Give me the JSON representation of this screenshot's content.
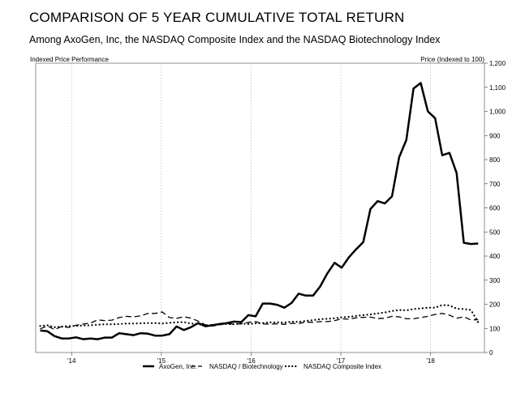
{
  "title": "COMPARISON OF 5 YEAR CUMULATIVE TOTAL RETURN",
  "subtitle": "Among AxoGen, Inc, the NASDAQ Composite Index and the NASDAQ Biotechnology Index",
  "chart_data": {
    "type": "line",
    "left_axis_label": "Indexed Price Performance",
    "right_axis_label": "Price (Indexed to 100)",
    "ylim": [
      0,
      1200
    ],
    "y_ticks": [
      0,
      100,
      200,
      300,
      400,
      500,
      600,
      700,
      800,
      900,
      1000,
      1100,
      1200
    ],
    "y_tick_labels": [
      "0",
      "100",
      "200",
      "300",
      "400",
      "500",
      "600",
      "700",
      "800",
      "900",
      "1,000",
      "1,100",
      "1,200"
    ],
    "xlim": [
      2013.6,
      2018.6
    ],
    "x_ticks": [
      2014.0,
      2015.0,
      2016.0,
      2017.0,
      2018.0
    ],
    "x_tick_labels": [
      "'14",
      "'15",
      "'16",
      "'17",
      "'18"
    ],
    "grid": "vertical-dotted",
    "legend_position": "bottom",
    "series": [
      {
        "name": "AxoGen, Inc.",
        "style": "solid",
        "x": [
          2013.65,
          2013.73,
          2013.81,
          2013.89,
          2013.97,
          2014.05,
          2014.13,
          2014.21,
          2014.29,
          2014.37,
          2014.45,
          2014.53,
          2014.61,
          2014.69,
          2014.77,
          2014.85,
          2014.93,
          2015.01,
          2015.09,
          2015.17,
          2015.25,
          2015.33,
          2015.41,
          2015.49,
          2015.57,
          2015.65,
          2015.73,
          2015.81,
          2015.89,
          2015.97,
          2016.05,
          2016.13,
          2016.21,
          2016.29,
          2016.37,
          2016.45,
          2016.53,
          2016.61,
          2016.69,
          2016.77,
          2016.85,
          2016.93,
          2017.01,
          2017.09,
          2017.17,
          2017.25,
          2017.33,
          2017.41,
          2017.49,
          2017.57,
          2017.65,
          2017.73,
          2017.81,
          2017.89,
          2017.97,
          2018.05,
          2018.13,
          2018.21,
          2018.29,
          2018.37,
          2018.45,
          2018.53
        ],
        "values": [
          91,
          88,
          68,
          58,
          58,
          63,
          55,
          58,
          55,
          62,
          62,
          80,
          76,
          72,
          80,
          78,
          70,
          70,
          76,
          108,
          93,
          105,
          122,
          109,
          113,
          118,
          122,
          128,
          126,
          155,
          150,
          203,
          203,
          198,
          186,
          205,
          244,
          236,
          236,
          274,
          328,
          372,
          352,
          395,
          428,
          458,
          595,
          628,
          618,
          648,
          810,
          882,
          1095,
          1118,
          1000,
          972,
          818,
          828,
          745,
          455,
          450,
          452
        ]
      },
      {
        "name": "NASDAQ / Biotechnology",
        "style": "dashed",
        "x": [
          2013.65,
          2013.73,
          2013.81,
          2013.89,
          2013.97,
          2014.05,
          2014.13,
          2014.21,
          2014.29,
          2014.37,
          2014.45,
          2014.53,
          2014.61,
          2014.69,
          2014.77,
          2014.85,
          2014.93,
          2015.01,
          2015.09,
          2015.17,
          2015.25,
          2015.33,
          2015.41,
          2015.49,
          2015.57,
          2015.65,
          2015.73,
          2015.81,
          2015.89,
          2015.97,
          2016.05,
          2016.13,
          2016.21,
          2016.29,
          2016.37,
          2016.45,
          2016.53,
          2016.61,
          2016.69,
          2016.77,
          2016.85,
          2016.93,
          2017.01,
          2017.09,
          2017.17,
          2017.25,
          2017.33,
          2017.41,
          2017.49,
          2017.57,
          2017.65,
          2017.73,
          2017.81,
          2017.89,
          2017.97,
          2018.05,
          2018.13,
          2018.21,
          2018.29,
          2018.37,
          2018.45,
          2018.53
        ],
        "values": [
          98,
          110,
          95,
          108,
          104,
          113,
          118,
          122,
          135,
          132,
          134,
          145,
          150,
          148,
          152,
          162,
          162,
          168,
          145,
          142,
          148,
          143,
          130,
          115,
          110,
          115,
          120,
          117,
          119,
          125,
          128,
          118,
          118,
          119,
          117,
          121,
          120,
          126,
          125,
          128,
          128,
          132,
          140,
          138,
          144,
          146,
          147,
          141,
          142,
          150,
          148,
          140,
          140,
          145,
          150,
          158,
          162,
          155,
          142,
          148,
          135,
          136
        ]
      },
      {
        "name": "NASDAQ Composite Index",
        "style": "dotted",
        "x": [
          2013.65,
          2013.73,
          2013.81,
          2013.89,
          2013.97,
          2014.05,
          2014.13,
          2014.21,
          2014.29,
          2014.37,
          2014.45,
          2014.53,
          2014.61,
          2014.69,
          2014.77,
          2014.85,
          2014.93,
          2015.01,
          2015.09,
          2015.17,
          2015.25,
          2015.33,
          2015.41,
          2015.49,
          2015.57,
          2015.65,
          2015.73,
          2015.81,
          2015.89,
          2015.97,
          2016.05,
          2016.13,
          2016.21,
          2016.29,
          2016.37,
          2016.45,
          2016.53,
          2016.61,
          2016.69,
          2016.77,
          2016.85,
          2016.93,
          2017.01,
          2017.09,
          2017.17,
          2017.25,
          2017.33,
          2017.41,
          2017.49,
          2017.57,
          2017.65,
          2017.73,
          2017.81,
          2017.89,
          2017.97,
          2018.05,
          2018.13,
          2018.21,
          2018.29,
          2018.37,
          2018.45,
          2018.53
        ],
        "values": [
          110,
          113,
          105,
          107,
          110,
          110,
          112,
          113,
          115,
          117,
          117,
          118,
          120,
          120,
          121,
          122,
          122,
          120,
          123,
          125,
          126,
          120,
          118,
          112,
          115,
          117,
          118,
          117,
          120,
          118,
          121,
          122,
          125,
          125,
          124,
          128,
          127,
          131,
          134,
          138,
          140,
          142,
          146,
          148,
          152,
          155,
          158,
          162,
          166,
          172,
          176,
          175,
          180,
          183,
          186,
          186,
          197,
          195,
          182,
          180,
          176,
          125
        ]
      }
    ]
  }
}
